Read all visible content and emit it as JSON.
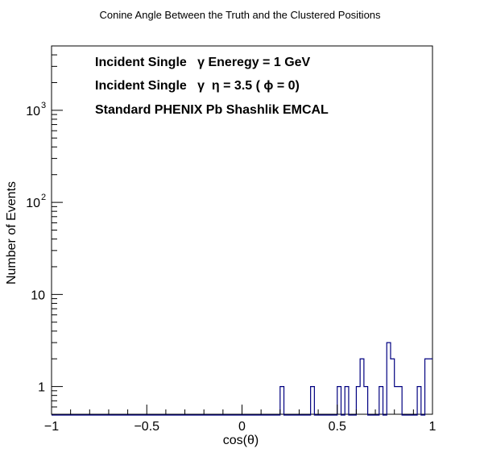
{
  "chart_data": {
    "type": "histogram",
    "title": "Conine Angle Between the Truth and the Clustered Positions",
    "xlabel": "cos(θ)",
    "ylabel": "Number of Events",
    "xlim": [
      -1,
      1
    ],
    "ylim_log": [
      0.5,
      5000
    ],
    "y_scale": "log",
    "grid": false,
    "x_ticks": [
      {
        "value": -1,
        "label": "−1"
      },
      {
        "value": -0.5,
        "label": "−0.5"
      },
      {
        "value": 0,
        "label": "0"
      },
      {
        "value": 0.5,
        "label": "0.5"
      },
      {
        "value": 1,
        "label": "1"
      }
    ],
    "y_ticks": [
      {
        "value": 1,
        "label": "1",
        "sup": ""
      },
      {
        "value": 10,
        "label": "10",
        "sup": ""
      },
      {
        "value": 100,
        "label": "10",
        "sup": "2"
      },
      {
        "value": 1000,
        "label": "10",
        "sup": "3"
      }
    ],
    "annotations": [
      "Incident Single   γ Eneregy = 1 GeV",
      "Incident Single   γ  η = 3.5 ( ϕ = 0)",
      "Standard PHENIX Pb Shashlik EMCAL"
    ],
    "bins": 100,
    "line_color": "#000080",
    "bin_values": [
      0,
      0,
      0,
      0,
      0,
      0,
      0,
      0,
      0,
      0,
      0,
      0,
      0,
      0,
      0,
      0,
      0,
      0,
      0,
      0,
      0,
      0,
      0,
      0,
      0,
      0,
      0,
      0,
      0,
      0,
      0,
      0,
      0,
      0,
      0,
      0,
      0,
      0,
      0,
      0,
      0,
      0,
      0,
      0,
      0,
      0,
      0,
      0,
      0,
      0,
      0,
      0,
      0,
      0,
      0,
      0,
      0,
      0,
      0,
      0,
      1,
      0,
      0,
      0,
      0,
      0,
      0,
      0,
      1,
      0,
      0,
      0,
      0,
      0,
      0,
      1,
      0,
      1,
      0,
      0,
      1,
      2,
      1,
      0,
      0,
      0,
      1,
      0,
      3,
      2,
      1,
      1,
      0,
      0,
      0,
      0,
      1,
      0,
      2,
      2
    ]
  }
}
